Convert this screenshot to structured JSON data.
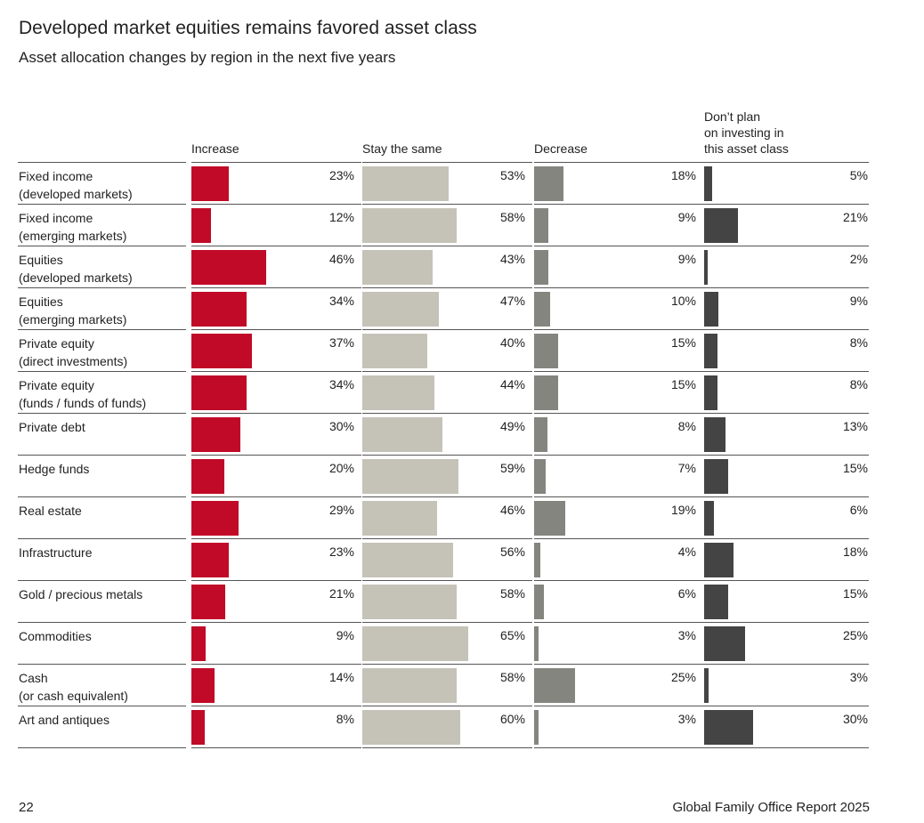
{
  "title": "Developed market equities remains favored asset class",
  "subtitle": "Asset allocation changes by region in the next five years",
  "footer": {
    "page_number": "22",
    "publication": "Global Family Office Report 2025"
  },
  "colors": {
    "increase": "#c00a27",
    "stay_the_same": "#c5c2b8",
    "decrease": "#858580",
    "dont_plan": "#444444",
    "rule": "#555555"
  },
  "chart_data": {
    "type": "bar",
    "orientation": "horizontal",
    "unit": "%",
    "columns": [
      {
        "key": "increase",
        "label": "Increase"
      },
      {
        "key": "stay_the_same",
        "label": "Stay the same"
      },
      {
        "key": "decrease",
        "label": "Decrease"
      },
      {
        "key": "dont_plan",
        "label": "Don’t plan on investing in this asset class",
        "label_lines": [
          "Don’t plan",
          "on investing in",
          "this asset class"
        ]
      }
    ],
    "categories": [
      "Fixed income (developed markets)",
      "Fixed income (emerging markets)",
      "Equities (developed markets)",
      "Equities (emerging markets)",
      "Private equity (direct investments)",
      "Private equity (funds / funds of funds)",
      "Private debt",
      "Hedge funds",
      "Real estate",
      "Infrastructure",
      "Gold / precious metals",
      "Commodities",
      "Cash (or cash equivalent)",
      "Art and antiques"
    ],
    "category_lines": [
      [
        "Fixed income",
        "(developed markets)"
      ],
      [
        "Fixed income",
        "(emerging markets)"
      ],
      [
        "Equities",
        "(developed markets)"
      ],
      [
        "Equities",
        "(emerging markets)"
      ],
      [
        "Private equity",
        "(direct investments)"
      ],
      [
        "Private equity",
        "(funds / funds of funds)"
      ],
      [
        "Private debt"
      ],
      [
        "Hedge funds"
      ],
      [
        "Real estate"
      ],
      [
        "Infrastructure"
      ],
      [
        "Gold / precious metals"
      ],
      [
        "Commodities"
      ],
      [
        "Cash",
        "(or cash equivalent)"
      ],
      [
        "Art and antiques"
      ]
    ],
    "series": [
      {
        "name": "Increase",
        "values": [
          23,
          12,
          46,
          34,
          37,
          34,
          30,
          20,
          29,
          23,
          21,
          9,
          14,
          8
        ]
      },
      {
        "name": "Stay the same",
        "values": [
          53,
          58,
          43,
          47,
          40,
          44,
          49,
          59,
          46,
          56,
          58,
          65,
          58,
          60
        ]
      },
      {
        "name": "Decrease",
        "values": [
          18,
          9,
          9,
          10,
          15,
          15,
          8,
          7,
          19,
          4,
          6,
          3,
          25,
          3
        ]
      },
      {
        "name": "Don’t plan on investing in this asset class",
        "values": [
          5,
          21,
          2,
          9,
          8,
          8,
          13,
          15,
          6,
          18,
          15,
          25,
          3,
          30
        ]
      }
    ]
  }
}
